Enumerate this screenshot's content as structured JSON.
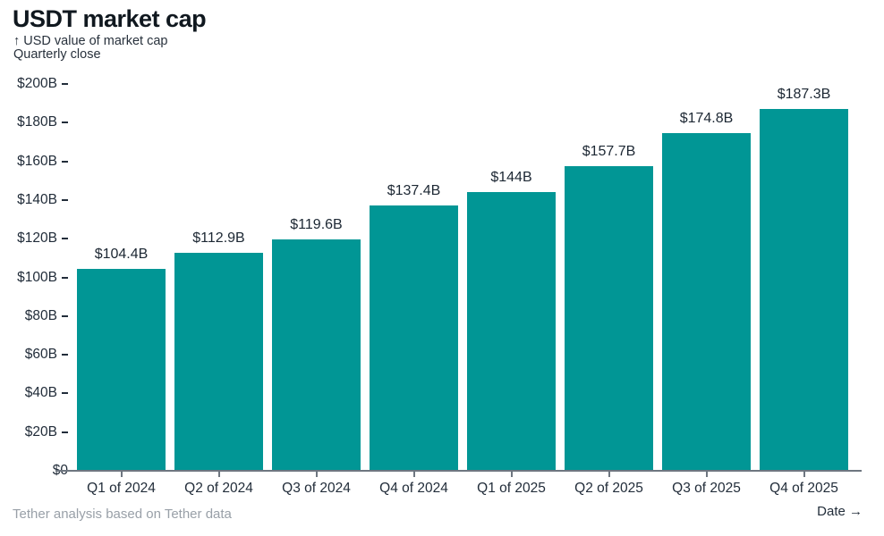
{
  "header": {
    "title": "USDT market cap",
    "subtitle_line1": "↑ USD value of market cap",
    "subtitle_line2": "Quarterly close"
  },
  "chart_data": {
    "type": "bar",
    "title": "USDT market cap",
    "ylabel": "USD value of market cap",
    "y_subtitle": "Quarterly close",
    "xlabel": "Date →",
    "categories": [
      "Q1 of 2024",
      "Q2 of 2024",
      "Q3 of 2024",
      "Q4 of 2024",
      "Q1 of 2025",
      "Q2 of 2025",
      "Q3 of 2025",
      "Q4 of 2025"
    ],
    "values": [
      104.4,
      112.9,
      119.6,
      137.4,
      144,
      157.7,
      174.8,
      187.3
    ],
    "value_labels": [
      "$104.4B",
      "$112.9B",
      "$119.6B",
      "$137.4B",
      "$144B",
      "$157.7B",
      "$174.8B",
      "$187.3B"
    ],
    "ylim": [
      0,
      200
    ],
    "y_tick_step": 20,
    "y_ticks": [
      {
        "value": 200,
        "label": "$200B"
      },
      {
        "value": 180,
        "label": "$180B"
      },
      {
        "value": 160,
        "label": "$160B"
      },
      {
        "value": 140,
        "label": "$140B"
      },
      {
        "value": 120,
        "label": "$120B"
      },
      {
        "value": 100,
        "label": "$100B"
      },
      {
        "value": 80,
        "label": "$80B"
      },
      {
        "value": 60,
        "label": "$60B"
      },
      {
        "value": 40,
        "label": "$40B"
      },
      {
        "value": 20,
        "label": "$20B"
      },
      {
        "value": 0,
        "label": "$0"
      }
    ],
    "grid": false,
    "legend_position": "none",
    "bar_color": "#019695"
  },
  "colors": {
    "bar": "#019695",
    "text_dark": "#1c2733",
    "text_muted": "#99a0a8",
    "axis_line": "#6e7680"
  },
  "footer": {
    "source": "Tether analysis based on Tether data",
    "x_axis_label": "Date →"
  }
}
